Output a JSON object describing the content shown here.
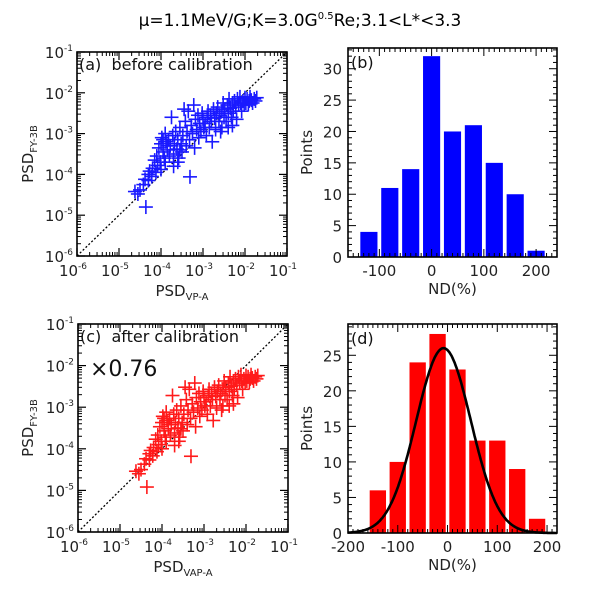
{
  "figure_title": {
    "prefix": "μ=1.1MeV/G;K=3.0G",
    "sup": "0.5",
    "suffix": "Re;3.1<L*<3.3"
  },
  "chart_data": [
    {
      "id": "a",
      "type": "scatter",
      "panel_label": "(a)  before calibration",
      "annotation": "",
      "xscale": "log",
      "yscale": "log",
      "xlim": [
        1e-06,
        0.1
      ],
      "ylim": [
        1e-06,
        0.1
      ],
      "xlabel": {
        "main": "PSD",
        "sub": "VP-A"
      },
      "ylabel": {
        "main": "PSD",
        "sub": "FY-3B"
      },
      "xticks": [
        {
          "base": "10",
          "exp": "-6"
        },
        {
          "base": "10",
          "exp": "-5"
        },
        {
          "base": "10",
          "exp": "-4"
        },
        {
          "base": "10",
          "exp": "-3"
        },
        {
          "base": "10",
          "exp": "-2"
        },
        {
          "base": "10",
          "exp": "-1"
        }
      ],
      "yticks": [
        {
          "base": "10",
          "exp": "-6"
        },
        {
          "base": "10",
          "exp": "-5"
        },
        {
          "base": "10",
          "exp": "-4"
        },
        {
          "base": "10",
          "exp": "-3"
        },
        {
          "base": "10",
          "exp": "-2"
        },
        {
          "base": "10",
          "exp": "-1"
        }
      ],
      "reference_line": "y = x (dotted)",
      "marker": "+",
      "color": "#1a1aff",
      "points_log10": [
        [
          -4.62,
          -4.42
        ],
        [
          -4.55,
          -4.48
        ],
        [
          -4.5,
          -4.38
        ],
        [
          -4.42,
          -4.25
        ],
        [
          -4.36,
          -4.8
        ],
        [
          -4.38,
          -4.12
        ],
        [
          -4.3,
          -4.15
        ],
        [
          -4.27,
          -3.92
        ],
        [
          -4.22,
          -4.05
        ],
        [
          -4.2,
          -3.85
        ],
        [
          -4.12,
          -3.95
        ],
        [
          -4.08,
          -3.78
        ],
        [
          -4.02,
          -3.7
        ],
        [
          -4.0,
          -3.88
        ],
        [
          -4.1,
          -3.55
        ],
        [
          -4.05,
          -3.35
        ],
        [
          -4.0,
          -3.25
        ],
        [
          -3.98,
          -3.1
        ],
        [
          -3.95,
          -3.45
        ],
        [
          -3.92,
          -3.6
        ],
        [
          -3.9,
          -3.0
        ],
        [
          -3.88,
          -3.2
        ],
        [
          -3.85,
          -3.4
        ],
        [
          -3.82,
          -3.15
        ],
        [
          -3.8,
          -3.55
        ],
        [
          -3.78,
          -3.3
        ],
        [
          -3.75,
          -2.6
        ],
        [
          -3.72,
          -3.05
        ],
        [
          -3.7,
          -3.5
        ],
        [
          -3.68,
          -3.25
        ],
        [
          -3.65,
          -2.95
        ],
        [
          -3.62,
          -3.38
        ],
        [
          -3.6,
          -3.15
        ],
        [
          -3.58,
          -3.6
        ],
        [
          -3.55,
          -2.85
        ],
        [
          -3.52,
          -3.25
        ],
        [
          -3.5,
          -3.45
        ],
        [
          -3.48,
          -3.05
        ],
        [
          -3.45,
          -2.4
        ],
        [
          -3.42,
          -2.7
        ],
        [
          -3.4,
          -3.3
        ],
        [
          -3.38,
          -2.95
        ],
        [
          -3.35,
          -2.45
        ],
        [
          -3.32,
          -3.15
        ],
        [
          -3.31,
          -4.06
        ],
        [
          -3.28,
          -2.8
        ],
        [
          -3.25,
          -3.0
        ],
        [
          -3.22,
          -2.3
        ],
        [
          -3.2,
          -3.35
        ],
        [
          -3.18,
          -2.65
        ],
        [
          -3.15,
          -2.9
        ],
        [
          -3.12,
          -2.55
        ],
        [
          -3.1,
          -3.1
        ],
        [
          -3.08,
          -2.75
        ],
        [
          -3.05,
          -2.95
        ],
        [
          -3.02,
          -2.5
        ],
        [
          -3.0,
          -2.65
        ],
        [
          -2.98,
          -2.85
        ],
        [
          -2.95,
          -2.75
        ],
        [
          -2.92,
          -3.05
        ],
        [
          -2.9,
          -2.6
        ],
        [
          -2.88,
          -2.45
        ],
        [
          -2.85,
          -2.85
        ],
        [
          -2.82,
          -2.55
        ],
        [
          -2.8,
          -2.7
        ],
        [
          -2.78,
          -3.2
        ],
        [
          -2.75,
          -2.4
        ],
        [
          -2.72,
          -2.62
        ],
        [
          -2.7,
          -2.9
        ],
        [
          -2.68,
          -2.5
        ],
        [
          -2.65,
          -2.35
        ],
        [
          -2.62,
          -2.7
        ],
        [
          -2.6,
          -2.55
        ],
        [
          -2.58,
          -2.95
        ],
        [
          -2.55,
          -2.45
        ],
        [
          -2.52,
          -2.25
        ],
        [
          -2.5,
          -2.6
        ],
        [
          -2.48,
          -2.4
        ],
        [
          -2.45,
          -2.7
        ],
        [
          -2.42,
          -2.3
        ],
        [
          -2.4,
          -2.5
        ],
        [
          -2.38,
          -2.15
        ],
        [
          -2.35,
          -2.38
        ],
        [
          -2.32,
          -2.6
        ],
        [
          -2.3,
          -2.25
        ],
        [
          -2.28,
          -2.45
        ],
        [
          -2.25,
          -2.2
        ],
        [
          -2.22,
          -2.35
        ],
        [
          -2.2,
          -2.65
        ],
        [
          -2.18,
          -2.15
        ],
        [
          -2.15,
          -2.3
        ],
        [
          -2.12,
          -2.1
        ],
        [
          -2.1,
          -2.25
        ],
        [
          -2.08,
          -2.45
        ],
        [
          -2.05,
          -2.2
        ],
        [
          -2.02,
          -2.3
        ],
        [
          -2.0,
          -2.12
        ],
        [
          -1.98,
          -2.25
        ],
        [
          -1.95,
          -2.15
        ],
        [
          -1.92,
          -2.28
        ],
        [
          -1.9,
          -2.2
        ],
        [
          -1.88,
          -2.1
        ],
        [
          -1.85,
          -2.18
        ],
        [
          -1.82,
          -2.25
        ],
        [
          -1.78,
          -2.15
        ],
        [
          -1.75,
          -2.2
        ],
        [
          -1.72,
          -2.12
        ],
        [
          -2.55,
          -2.85
        ],
        [
          -2.4,
          -2.85
        ],
        [
          -2.3,
          -2.8
        ],
        [
          -3.9,
          -3.7
        ],
        [
          -3.85,
          -3.3
        ],
        [
          -3.7,
          -3.8
        ],
        [
          -3.6,
          -3.7
        ],
        [
          -3.55,
          -3.4
        ],
        [
          -4.15,
          -3.65
        ],
        [
          -4.3,
          -4.0
        ],
        [
          -3.95,
          -3.15
        ]
      ]
    },
    {
      "id": "b",
      "type": "bar",
      "panel_label": "(b)",
      "categories": [
        -120,
        -80,
        -40,
        0,
        40,
        80,
        120,
        160,
        200
      ],
      "values": [
        4,
        11,
        14,
        32,
        20,
        21,
        15,
        10,
        1
      ],
      "bin_width": 40,
      "xlim": [
        -160,
        240
      ],
      "ylim": [
        0,
        33.3
      ],
      "xticks": [
        -100,
        0,
        100,
        200
      ],
      "yticks": [
        0,
        5,
        10,
        15,
        20,
        25,
        30
      ],
      "xlabel": "ND(%)",
      "ylabel": "Points",
      "color": "#0000ff"
    },
    {
      "id": "c",
      "type": "scatter",
      "panel_label": "(c)  after calibration",
      "annotation": "×0.76",
      "scale_factor": 0.76,
      "xscale": "log",
      "yscale": "log",
      "xlim": [
        1e-06,
        0.1
      ],
      "ylim": [
        1e-06,
        0.1
      ],
      "xlabel": {
        "main": "PSD",
        "sub": "VAP-A"
      },
      "ylabel": {
        "main": "PSD",
        "sub": "FY-3B"
      },
      "xticks": [
        {
          "base": "10",
          "exp": "-6"
        },
        {
          "base": "10",
          "exp": "-5"
        },
        {
          "base": "10",
          "exp": "-4"
        },
        {
          "base": "10",
          "exp": "-3"
        },
        {
          "base": "10",
          "exp": "-2"
        },
        {
          "base": "10",
          "exp": "-1"
        }
      ],
      "yticks": [
        {
          "base": "10",
          "exp": "-6"
        },
        {
          "base": "10",
          "exp": "-5"
        },
        {
          "base": "10",
          "exp": "-4"
        },
        {
          "base": "10",
          "exp": "-3"
        },
        {
          "base": "10",
          "exp": "-2"
        },
        {
          "base": "10",
          "exp": "-1"
        }
      ],
      "reference_line": "y = x (dotted)",
      "marker": "+",
      "color": "#ff1a1a",
      "points_from": "a",
      "note": "points of (a) with y multiplied by 0.76"
    },
    {
      "id": "d",
      "type": "bar",
      "panel_label": "(d)",
      "categories": [
        -140,
        -100,
        -60,
        -20,
        20,
        60,
        100,
        140,
        180
      ],
      "values": [
        6,
        10,
        24,
        28,
        23,
        13,
        13,
        9,
        2
      ],
      "bin_width": 40,
      "xlim": [
        -200,
        220
      ],
      "ylim": [
        0,
        29.4
      ],
      "xticks": [
        -200,
        -100,
        0,
        100,
        200
      ],
      "yticks": [
        0,
        5,
        10,
        15,
        20,
        25
      ],
      "xlabel": "ND(%)",
      "ylabel": "Points",
      "color": "#ff0000",
      "fit": {
        "type": "gaussian",
        "amplitude": 26,
        "mean": -8,
        "sigma": 55,
        "color": "#000000"
      }
    }
  ]
}
